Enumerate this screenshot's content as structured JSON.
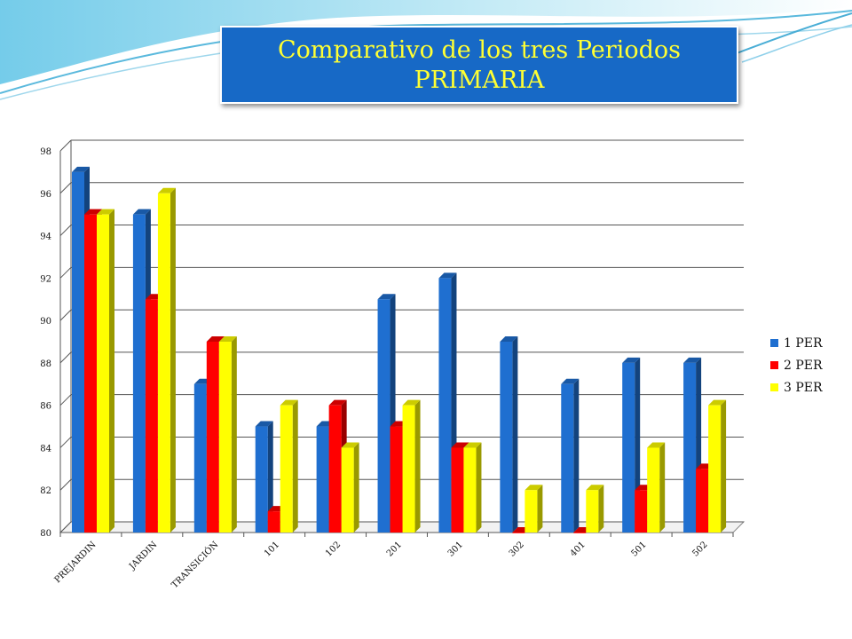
{
  "slide": {
    "title_line1": "Comparativo de los tres Periodos",
    "title_line2": "PRIMARIA"
  },
  "chart_data": {
    "type": "bar",
    "categories": [
      "PREJARDIN",
      "JARDIN",
      "TRANSICIÓN",
      "101",
      "102",
      "201",
      "301",
      "302",
      "401",
      "501",
      "502"
    ],
    "series": [
      {
        "name": "1 PER",
        "color": "#1f6fd0",
        "values": [
          97,
          95,
          87,
          85,
          85,
          91,
          92,
          89,
          87,
          88,
          88
        ]
      },
      {
        "name": "2 PER",
        "color": "#ff0000",
        "values": [
          95,
          91,
          89,
          81,
          86,
          85,
          84,
          80,
          80,
          82,
          83
        ]
      },
      {
        "name": "3 PER",
        "color": "#ffff00",
        "values": [
          95,
          96,
          89,
          86,
          84,
          86,
          84,
          82,
          82,
          84,
          86
        ]
      }
    ],
    "yticks": [
      "80",
      "82",
      "84",
      "86",
      "88",
      "90",
      "92",
      "94",
      "96",
      "98"
    ],
    "ylim": [
      80,
      98
    ],
    "grid": true,
    "legend_position": "right"
  }
}
